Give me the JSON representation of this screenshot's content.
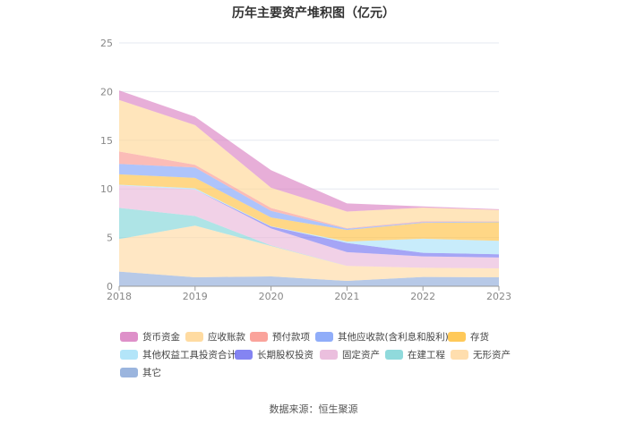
{
  "chart_data": {
    "type": "area",
    "stacked": true,
    "title": "历年主要资产堆积图（亿元）",
    "x": [
      "2018",
      "2019",
      "2020",
      "2021",
      "2022",
      "2023"
    ],
    "ylim": [
      0,
      25
    ],
    "yticks": [
      "0",
      "5",
      "10",
      "15",
      "20",
      "25"
    ],
    "grid": true,
    "legend_position": "bottom",
    "series": [
      {
        "name": "其它",
        "color": "#8aa8d8",
        "values": [
          1.5,
          0.92,
          1.01,
          0.55,
          0.95,
          0.92
        ]
      },
      {
        "name": "无形资产",
        "color": "#ffd8a0",
        "values": [
          3.35,
          5.31,
          3.13,
          1.54,
          0.95,
          0.92
        ]
      },
      {
        "name": "在建工程",
        "color": "#7dd3d6",
        "values": [
          3.2,
          0.98,
          0.05,
          0,
          0,
          0
        ]
      },
      {
        "name": "固定资产",
        "color": "#e8b4d8",
        "values": [
          2.33,
          2.73,
          1.75,
          1.41,
          1.17,
          1.11
        ]
      },
      {
        "name": "长期股权投资",
        "color": "#6e6ef0",
        "values": [
          0,
          0,
          0.2,
          0.95,
          0.37,
          0.34
        ]
      },
      {
        "name": "其他权益工具投资合计",
        "color": "#a6e0f8",
        "values": [
          0.05,
          0.12,
          0.03,
          0.15,
          1.44,
          1.38
        ]
      },
      {
        "name": "存货",
        "color": "#ffbf3c",
        "values": [
          1.07,
          1.07,
          0.9,
          1.18,
          1.63,
          1.9
        ]
      },
      {
        "name": "其他应收款(含利息和股利)",
        "color": "#7d9ff8",
        "values": [
          1.07,
          1.07,
          0.67,
          0.12,
          0.09,
          0.06
        ]
      },
      {
        "name": "预付款项",
        "color": "#f9938a",
        "values": [
          1.27,
          0.28,
          0.3,
          0.06,
          0.07,
          0.03
        ]
      },
      {
        "name": "应收账款",
        "color": "#ffd591",
        "values": [
          5.3,
          4.08,
          2.08,
          1.72,
          1.41,
          1.17
        ]
      },
      {
        "name": "货币资金",
        "color": "#d87cc0",
        "values": [
          0.98,
          0.86,
          1.81,
          0.83,
          0.12,
          0.09
        ]
      }
    ],
    "legend_order": [
      "货币资金",
      "应收账款",
      "预付款项",
      "其他应收款(含利息和股利)",
      "存货",
      "其他权益工具投资合计",
      "长期股权投资",
      "固定资产",
      "在建工程",
      "无形资产",
      "其它"
    ]
  },
  "source": "数据来源：恒生聚源"
}
